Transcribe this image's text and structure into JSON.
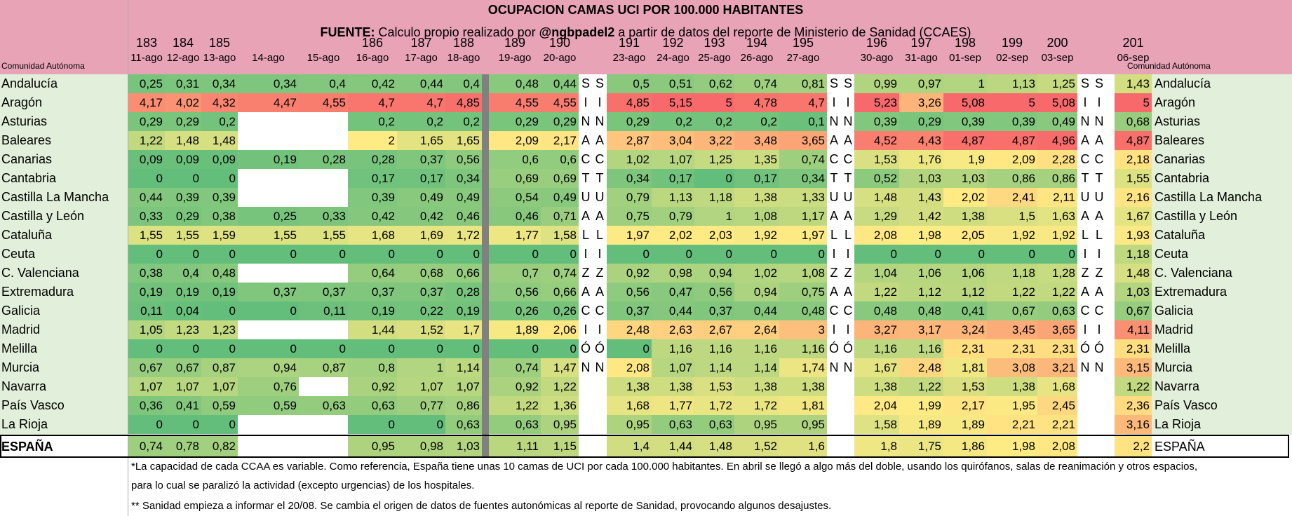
{
  "title": "OCUPACION CAMAS UCI POR 100.000 HABITANTES",
  "source_label": "FUENTE:",
  "source_text_1": " Calculo propio realizado por ",
  "source_handle": "@ngbpadel2",
  "source_text_2": " a partir de datos del reporte de Ministerio de Sanidad (CCAES)",
  "region_header": "Comunidad Autónoma",
  "columns": [
    {
      "num": "183",
      "date": "11-ago"
    },
    {
      "num": "184",
      "date": "12-ago"
    },
    {
      "num": "185",
      "date": "13-ago"
    },
    {
      "num": "",
      "date": "14-ago"
    },
    {
      "num": "",
      "date": "15-ago"
    },
    {
      "num": "186",
      "date": "16-ago"
    },
    {
      "num": "187",
      "date": "17-ago"
    },
    {
      "num": "188",
      "date": "18-ago"
    },
    {
      "num": "189",
      "date": "19-ago"
    },
    {
      "num": "190",
      "date": "20-ago"
    },
    {
      "num": "191",
      "date": "23-ago"
    },
    {
      "num": "192",
      "date": "24-ago"
    },
    {
      "num": "193",
      "date": "25-ago"
    },
    {
      "num": "194",
      "date": "26-ago"
    },
    {
      "num": "195",
      "date": "27-ago"
    },
    {
      "num": "196",
      "date": "30-ago"
    },
    {
      "num": "197",
      "date": "31-ago"
    },
    {
      "num": "198",
      "date": "01-sep"
    },
    {
      "num": "199",
      "date": "02-sep"
    },
    {
      "num": "200",
      "date": "03-sep"
    },
    {
      "num": "201",
      "date": "06-sep"
    }
  ],
  "weekend_letters": [
    "S",
    "I",
    "N",
    "A",
    "C",
    "T",
    "U",
    "A",
    "L",
    "I",
    "Z",
    "A",
    "C",
    "I",
    "Ó",
    "N"
  ],
  "rows": [
    {
      "name": "Andalucía",
      "values": [
        "0,25",
        "0,31",
        "0,34",
        "0,34",
        "0,4",
        "0,42",
        "0,44",
        "0,4",
        "0,48",
        "0,44",
        "0,5",
        "0,51",
        "0,62",
        "0,74",
        "0,81",
        "0,99",
        "0,97",
        "1",
        "1,13",
        "1,25",
        "1,43"
      ]
    },
    {
      "name": "Aragón",
      "values": [
        "4,17",
        "4,02",
        "4,32",
        "4,47",
        "4,55",
        "4,7",
        "4,7",
        "4,85",
        "4,55",
        "4,55",
        "4,85",
        "5,15",
        "5",
        "4,78",
        "4,7",
        "5,23",
        "3,26",
        "5,08",
        "5",
        "5,08",
        "5"
      ]
    },
    {
      "name": "Asturias",
      "values": [
        "0,29",
        "0,29",
        "0,2",
        "",
        "",
        "0,2",
        "0,2",
        "0,2",
        "0,29",
        "0,29",
        "0,29",
        "0,2",
        "0,2",
        "0,2",
        "0,1",
        "0,39",
        "0,29",
        "0,39",
        "0,39",
        "0,49",
        "0,68"
      ]
    },
    {
      "name": "Baleares",
      "values": [
        "1,22",
        "1,48",
        "1,48",
        "",
        "",
        "2",
        "1,65",
        "1,65",
        "2,09",
        "2,17",
        "2,87",
        "3,04",
        "3,22",
        "3,48",
        "3,65",
        "4,52",
        "4,43",
        "4,87",
        "4,87",
        "4,96",
        "4,87"
      ]
    },
    {
      "name": "Canarias",
      "values": [
        "0,09",
        "0,09",
        "0,09",
        "0,19",
        "0,28",
        "0,28",
        "0,37",
        "0,56",
        "0,6",
        "0,6",
        "1,02",
        "1,07",
        "1,25",
        "1,35",
        "0,74",
        "1,53",
        "1,76",
        "1,9",
        "2,09",
        "2,28",
        "2,18"
      ]
    },
    {
      "name": "Cantabria",
      "values": [
        "0",
        "0",
        "0",
        "",
        "",
        "0,17",
        "0,17",
        "0,34",
        "0,69",
        "0,69",
        "0,34",
        "0,17",
        "0",
        "0,17",
        "0,34",
        "0,52",
        "1,03",
        "1,03",
        "0,86",
        "0,86",
        "1,55"
      ]
    },
    {
      "name": "Castilla La Mancha",
      "values": [
        "0,44",
        "0,39",
        "0,39",
        "",
        "",
        "0,39",
        "0,49",
        "0,49",
        "0,54",
        "0,49",
        "0,79",
        "1,13",
        "1,18",
        "1,38",
        "1,33",
        "1,48",
        "1,43",
        "2,02",
        "2,41",
        "2,11",
        "2,16"
      ]
    },
    {
      "name": "Castilla y León",
      "values": [
        "0,33",
        "0,29",
        "0,38",
        "0,25",
        "0,33",
        "0,42",
        "0,42",
        "0,46",
        "0,46",
        "0,71",
        "0,75",
        "0,79",
        "1",
        "1,08",
        "1,17",
        "1,29",
        "1,42",
        "1,38",
        "1,5",
        "1,63",
        "1,67"
      ]
    },
    {
      "name": "Cataluña",
      "values": [
        "1,55",
        "1,55",
        "1,59",
        "1,55",
        "1,55",
        "1,68",
        "1,69",
        "1,72",
        "1,77",
        "1,58",
        "1,97",
        "2,02",
        "2,03",
        "1,92",
        "1,97",
        "2,08",
        "1,98",
        "2,05",
        "1,92",
        "1,92",
        "1,93"
      ]
    },
    {
      "name": "Ceuta",
      "values": [
        "0",
        "0",
        "0",
        "0",
        "0",
        "0",
        "0",
        "0",
        "0",
        "0",
        "0",
        "0",
        "0",
        "0",
        "0",
        "0",
        "0",
        "0",
        "0",
        "0",
        "1,18"
      ]
    },
    {
      "name": "C. Valenciana",
      "values": [
        "0,38",
        "0,4",
        "0,48",
        "",
        "",
        "0,64",
        "0,68",
        "0,66",
        "0,7",
        "0,74",
        "0,92",
        "0,98",
        "0,94",
        "1,02",
        "1,08",
        "1,04",
        "1,06",
        "1,06",
        "1,18",
        "1,28",
        "1,48"
      ]
    },
    {
      "name": "Extremadura",
      "values": [
        "0,19",
        "0,19",
        "0,19",
        "0,37",
        "0,37",
        "0,37",
        "0,37",
        "0,28",
        "0,56",
        "0,66",
        "0,56",
        "0,47",
        "0,56",
        "0,94",
        "0,75",
        "1,22",
        "1,12",
        "1,12",
        "1,22",
        "1,22",
        "1,03"
      ]
    },
    {
      "name": "Galicia",
      "values": [
        "0,11",
        "0,04",
        "0",
        "0",
        "0,11",
        "0,19",
        "0,22",
        "0,19",
        "0,26",
        "0,26",
        "0,37",
        "0,44",
        "0,37",
        "0,44",
        "0,48",
        "0,48",
        "0,48",
        "0,41",
        "0,67",
        "0,63",
        "0,67"
      ]
    },
    {
      "name": "Madrid",
      "values": [
        "1,05",
        "1,23",
        "1,23",
        "",
        "",
        "1,44",
        "1,52",
        "1,7",
        "1,89",
        "2,06",
        "2,48",
        "2,63",
        "2,67",
        "2,64",
        "3",
        "3,27",
        "3,17",
        "3,24",
        "3,45",
        "3,65",
        "4,11"
      ]
    },
    {
      "name": "Melilla",
      "values": [
        "0",
        "0",
        "0",
        "0",
        "0",
        "0",
        "0",
        "0",
        "0",
        "0",
        "0",
        "1,16",
        "1,16",
        "1,16",
        "1,16",
        "1,16",
        "1,16",
        "2,31",
        "2,31",
        "2,31",
        "2,31"
      ]
    },
    {
      "name": "Murcia",
      "values": [
        "0,67",
        "0,67",
        "0,87",
        "0,94",
        "0,87",
        "0,8",
        "1",
        "1,14",
        "0,74",
        "1,47",
        "2,08",
        "1,07",
        "1,14",
        "1,14",
        "1,74",
        "1,67",
        "2,48",
        "1,81",
        "3,08",
        "3,21",
        "3,15"
      ]
    },
    {
      "name": "Navarra",
      "values": [
        "1,07",
        "1,07",
        "1,07",
        "0,76",
        "",
        "0,92",
        "1,07",
        "1,07",
        "0,92",
        "1,22",
        "1,38",
        "1,38",
        "1,53",
        "1,38",
        "1,38",
        "1,38",
        "1,22",
        "1,53",
        "1,38",
        "1,68",
        "1,22"
      ]
    },
    {
      "name": "País Vasco",
      "values": [
        "0,36",
        "0,41",
        "0,59",
        "0,59",
        "0,63",
        "0,63",
        "0,77",
        "0,86",
        "1,22",
        "1,36",
        "1,68",
        "1,77",
        "1,72",
        "1,72",
        "1,81",
        "2,04",
        "1,99",
        "2,17",
        "1,95",
        "2,45",
        "2,36"
      ]
    },
    {
      "name": "La Rioja",
      "values": [
        "0",
        "0",
        "0",
        "",
        "",
        "0",
        "0",
        "0,63",
        "0,63",
        "0,95",
        "0,95",
        "0,63",
        "0,63",
        "0,95",
        "0,95",
        "1,58",
        "1,89",
        "1,89",
        "2,21",
        "2,21",
        "3,16"
      ]
    }
  ],
  "total": {
    "name": "ESPAÑA",
    "values": [
      "0,74",
      "0,78",
      "0,82",
      "",
      "",
      "0,95",
      "0,98",
      "1,03",
      "1,11",
      "1,15",
      "1,4",
      "1,44",
      "1,48",
      "1,52",
      "1,6",
      "1,8",
      "1,75",
      "1,86",
      "1,98",
      "2,08",
      "2,2"
    ]
  },
  "note_1a": "*La capacidad de cada CCAA es variable. Como referencia, España tiene unas 10 camas de UCI por cada 100.000 habitantes. En abril se llegó a algo más del doble, usando los quirófanos, salas de reanimación y otros espacios,",
  "note_1b": "para lo cual se paralizó la actividad (excepto urgencias) de los hospitales.",
  "note_2": "** Sanidad empieza a informar el 20/08. Se cambia el origen de datos de fuentes autonómicas al reporte de Sanidad, provocando algunos desajustes.",
  "colors": {
    "header_bg": "#e8a3b7",
    "names_bg": "#e2efda",
    "low": "#63be7b",
    "mid": "#ffeb84",
    "high": "#f8696b",
    "separator": "#808080"
  }
}
